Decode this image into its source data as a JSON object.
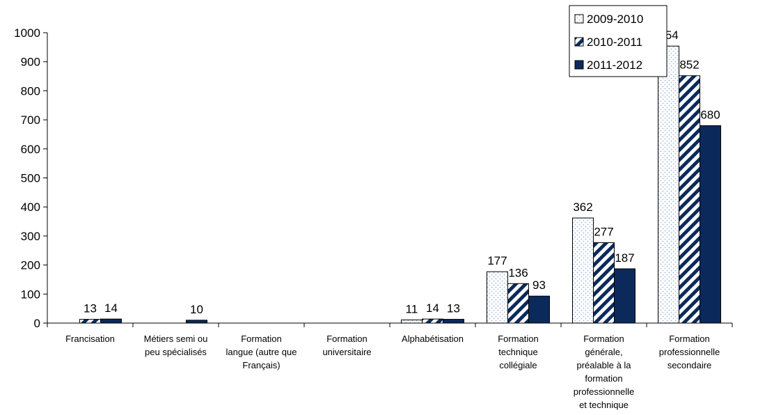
{
  "chart_data": {
    "type": "bar",
    "categories": [
      [
        "Francisation"
      ],
      [
        "Métiers semi ou",
        "peu spécialisés"
      ],
      [
        "Formation",
        "langue (autre que",
        "Français)"
      ],
      [
        "Formation",
        "universitaire"
      ],
      [
        "Alphabétisation"
      ],
      [
        "Formation",
        "technique",
        "collégiale"
      ],
      [
        "Formation",
        "générale,",
        "préalable à la",
        "formation",
        "professionnelle",
        "et technique"
      ],
      [
        "Formation",
        "professionnelle",
        "secondaire"
      ]
    ],
    "series": [
      {
        "name": "2009-2010",
        "pattern": "dots",
        "values": [
          null,
          null,
          null,
          null,
          11,
          177,
          362,
          954
        ]
      },
      {
        "name": "2010-2011",
        "pattern": "stripes",
        "values": [
          13,
          null,
          null,
          null,
          14,
          136,
          277,
          852
        ]
      },
      {
        "name": "2011-2012",
        "pattern": "solid",
        "values": [
          14,
          10,
          null,
          null,
          13,
          93,
          187,
          680
        ]
      }
    ],
    "ylim": [
      0,
      1000
    ],
    "yticks": [
      "0",
      "100",
      "200",
      "300",
      "400",
      "500",
      "600",
      "700",
      "800",
      "900",
      "1000"
    ],
    "legend_position": "top-right",
    "grid": false,
    "colors": {
      "solid": "#0b2a5b",
      "dots": "#9fb6d8",
      "stripes": "#0b2a5b"
    }
  }
}
